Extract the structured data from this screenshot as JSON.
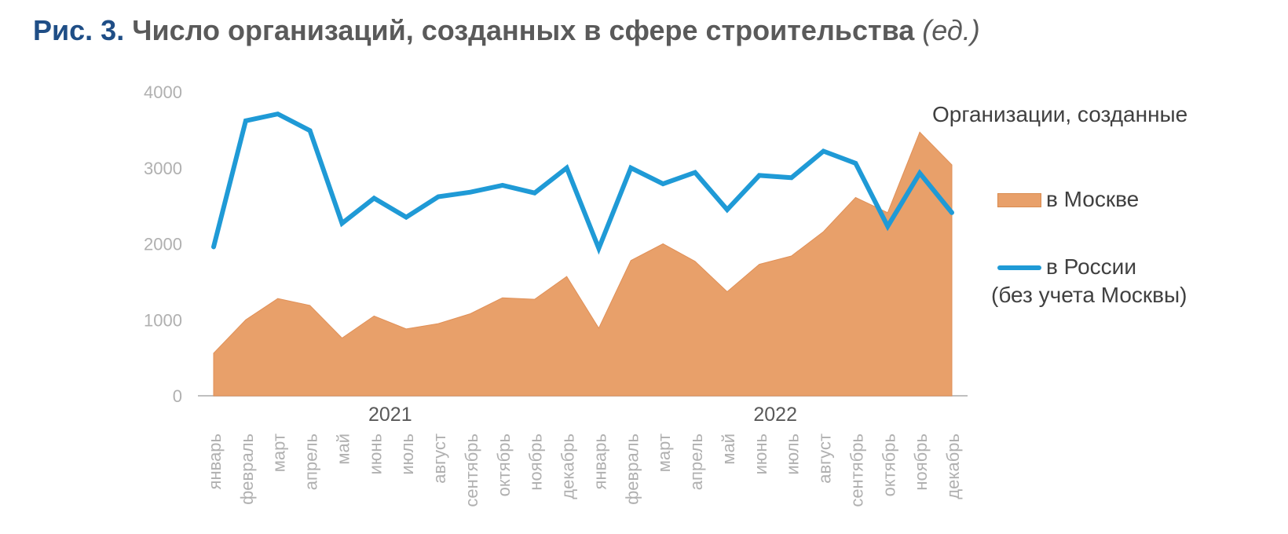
{
  "title": {
    "prefix": "Рис. 3.",
    "text": " Число организаций, созданных в сфере строительства ",
    "unit": "(ед.)"
  },
  "legend": {
    "title": "Организации, созданные",
    "moscow": "в Москве",
    "russia": "в России",
    "russia_note": "(без учета Москвы)"
  },
  "colors": {
    "moscow_fill": "#e8a06a",
    "russia_line": "#1f9ad6",
    "axis": "#bfbfbf",
    "tick_text": "#b0b0b0"
  },
  "chart_data": {
    "type": "area+line",
    "title": "Число организаций, созданных в сфере строительства (ед.)",
    "ylim": [
      0,
      4000
    ],
    "yticks": [
      "0",
      "1000",
      "2000",
      "3000",
      "4000"
    ],
    "years": [
      {
        "label": "2021",
        "start_index": 0,
        "end_index": 11
      },
      {
        "label": "2022",
        "start_index": 12,
        "end_index": 23
      }
    ],
    "categories": [
      "январь",
      "февраль",
      "март",
      "апрель",
      "май",
      "июнь",
      "июль",
      "август",
      "сентябрь",
      "октябрь",
      "ноябрь",
      "декабрь",
      "январь",
      "февраль",
      "март",
      "апрель",
      "май",
      "июнь",
      "июль",
      "август",
      "сентябрь",
      "октябрь",
      "ноябрь",
      "декабрь"
    ],
    "series": [
      {
        "name": "в Москве",
        "type": "area",
        "values": [
          560,
          1000,
          1280,
          1190,
          760,
          1050,
          880,
          950,
          1080,
          1290,
          1270,
          1570,
          890,
          1780,
          2000,
          1770,
          1370,
          1730,
          1840,
          2160,
          2610,
          2410,
          3470,
          3040
        ]
      },
      {
        "name": "в России (без учета Москвы)",
        "type": "line",
        "values": [
          1960,
          3620,
          3710,
          3490,
          2270,
          2600,
          2350,
          2620,
          2680,
          2770,
          2670,
          3000,
          1940,
          3000,
          2790,
          2940,
          2450,
          2900,
          2870,
          3220,
          3060,
          2230,
          2930,
          2410
        ]
      }
    ]
  }
}
